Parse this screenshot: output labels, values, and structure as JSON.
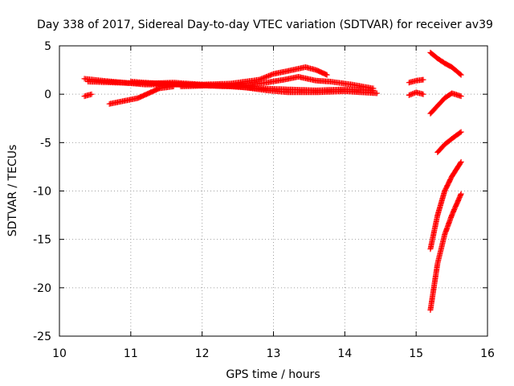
{
  "chart_data": {
    "type": "scatter",
    "title": "Day 338 of 2017, Sidereal Day-to-day VTEC variation (SDTVAR) for receiver av39",
    "xlabel": "GPS time / hours",
    "ylabel": "SDTVAR / TECUs",
    "xlim": [
      10,
      16
    ],
    "ylim": [
      -25,
      5
    ],
    "xticks": [
      10,
      11,
      12,
      13,
      14,
      15,
      16
    ],
    "yticks": [
      -25,
      -20,
      -15,
      -10,
      -5,
      0,
      5
    ],
    "grid": true,
    "legend": "none",
    "marker": "plus",
    "color": "#ff0000",
    "tracks": [
      {
        "points": [
          [
            10.35,
            1.6
          ],
          [
            10.6,
            1.4
          ],
          [
            10.9,
            1.2
          ],
          [
            11.2,
            1.0
          ],
          [
            11.6,
            1.0
          ],
          [
            12.0,
            0.9
          ],
          [
            12.4,
            0.8
          ],
          [
            12.8,
            0.6
          ],
          [
            13.2,
            0.5
          ],
          [
            13.6,
            0.4
          ],
          [
            14.0,
            0.5
          ],
          [
            14.4,
            0.4
          ]
        ]
      },
      {
        "points": [
          [
            10.4,
            1.3
          ],
          [
            10.8,
            1.2
          ],
          [
            11.2,
            1.1
          ],
          [
            11.6,
            1.2
          ],
          [
            12.0,
            1.0
          ],
          [
            12.4,
            1.1
          ],
          [
            12.8,
            1.5
          ],
          [
            13.0,
            2.1
          ],
          [
            13.2,
            2.4
          ],
          [
            13.45,
            2.8
          ],
          [
            13.6,
            2.5
          ],
          [
            13.75,
            2.0
          ]
        ]
      },
      {
        "points": [
          [
            11.0,
            1.3
          ],
          [
            11.4,
            1.1
          ],
          [
            11.8,
            1.0
          ],
          [
            12.2,
            0.9
          ],
          [
            12.6,
            0.9
          ],
          [
            12.9,
            1.2
          ],
          [
            13.15,
            1.5
          ],
          [
            13.35,
            1.8
          ],
          [
            13.6,
            1.4
          ],
          [
            13.8,
            1.3
          ],
          [
            14.1,
            1.0
          ],
          [
            14.4,
            0.6
          ]
        ]
      },
      {
        "points": [
          [
            11.7,
            0.8
          ],
          [
            12.1,
            0.9
          ],
          [
            12.5,
            0.8
          ],
          [
            12.9,
            0.4
          ],
          [
            13.2,
            0.2
          ],
          [
            13.6,
            0.2
          ],
          [
            14.0,
            0.3
          ],
          [
            14.45,
            0.1
          ]
        ]
      },
      {
        "points": [
          [
            10.7,
            -1.0
          ],
          [
            10.9,
            -0.7
          ],
          [
            11.1,
            -0.4
          ],
          [
            11.25,
            0.1
          ],
          [
            11.4,
            0.6
          ],
          [
            11.6,
            0.8
          ]
        ]
      },
      {
        "points": [
          [
            10.35,
            -0.2
          ],
          [
            10.45,
            0.0
          ]
        ]
      },
      {
        "points": [
          [
            14.9,
            1.2
          ],
          [
            15.0,
            1.4
          ],
          [
            15.1,
            1.5
          ]
        ]
      },
      {
        "points": [
          [
            14.9,
            -0.1
          ],
          [
            15.0,
            0.2
          ],
          [
            15.1,
            0.0
          ]
        ]
      },
      {
        "points": [
          [
            15.2,
            4.3
          ],
          [
            15.3,
            3.7
          ],
          [
            15.4,
            3.2
          ],
          [
            15.5,
            2.8
          ],
          [
            15.63,
            2.0
          ]
        ]
      },
      {
        "points": [
          [
            15.2,
            -2.0
          ],
          [
            15.3,
            -1.2
          ],
          [
            15.4,
            -0.4
          ],
          [
            15.5,
            0.1
          ],
          [
            15.63,
            -0.2
          ]
        ]
      },
      {
        "points": [
          [
            15.3,
            -6.0
          ],
          [
            15.4,
            -5.2
          ],
          [
            15.5,
            -4.6
          ],
          [
            15.63,
            -3.9
          ]
        ]
      },
      {
        "points": [
          [
            15.2,
            -16.0
          ],
          [
            15.3,
            -12.5
          ],
          [
            15.4,
            -10.0
          ],
          [
            15.5,
            -8.5
          ],
          [
            15.63,
            -7.0
          ]
        ]
      },
      {
        "points": [
          [
            15.2,
            -22.3
          ],
          [
            15.3,
            -17.5
          ],
          [
            15.4,
            -14.5
          ],
          [
            15.5,
            -12.5
          ],
          [
            15.63,
            -10.3
          ]
        ]
      }
    ]
  }
}
